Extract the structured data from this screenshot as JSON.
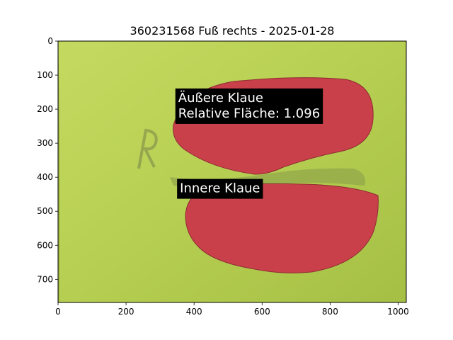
{
  "chart_data": {
    "type": "image",
    "title": "360231568 Fuß rechts - 2025-01-28",
    "xlabel": "",
    "ylabel": "",
    "xlim": [
      0,
      1024
    ],
    "ylim": [
      768,
      0
    ],
    "x_ticks": [
      0,
      200,
      400,
      600,
      800,
      1000
    ],
    "y_ticks": [
      0,
      100,
      200,
      300,
      400,
      500,
      600,
      700
    ],
    "grid": false,
    "background_color": "#b6cf52",
    "segment_color": "#c9404a",
    "annotations": [
      {
        "lines": [
          "Äußere Klaue",
          "Relative Fläche: 1.096"
        ],
        "x": 345,
        "y": 235
      },
      {
        "lines": [
          "Innere Klaue"
        ],
        "x": 350,
        "y": 455
      }
    ]
  }
}
